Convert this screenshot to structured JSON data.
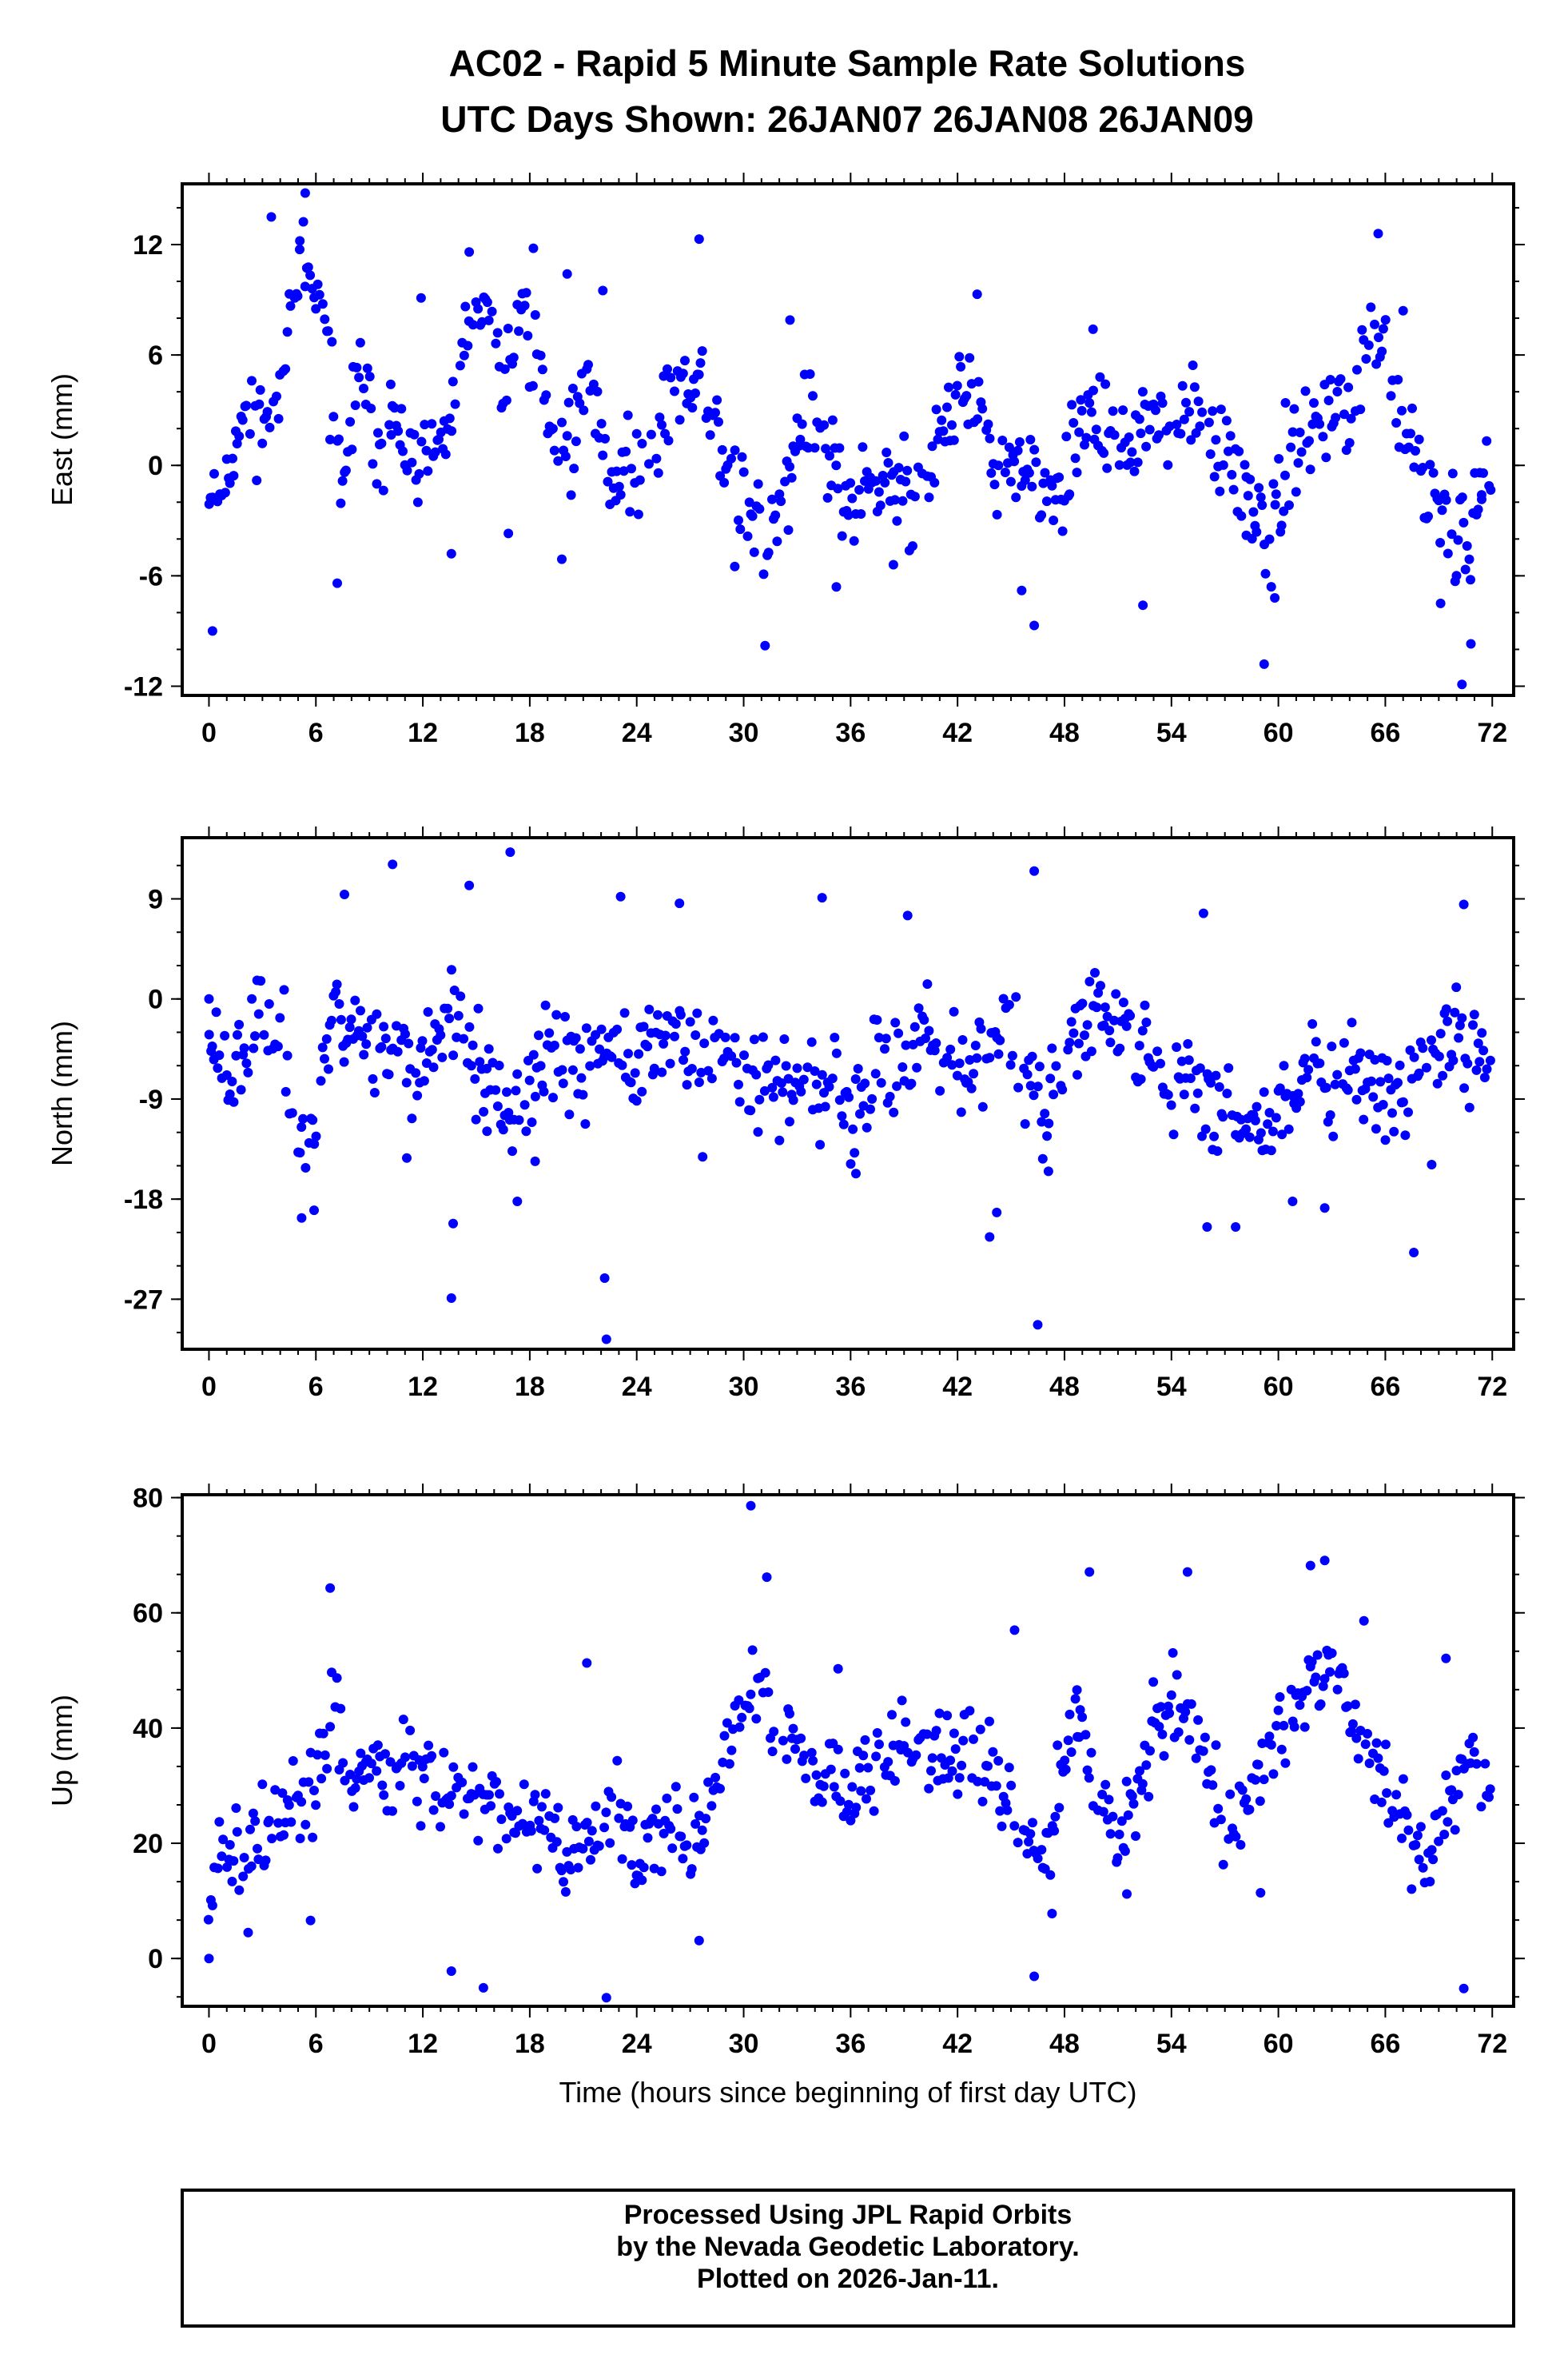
{
  "title": {
    "line1": "AC02 - Rapid 5 Minute Sample Rate Solutions",
    "line2": "UTC Days Shown:  26JAN07 26JAN08 26JAN09"
  },
  "colors": {
    "points": "#0000ff",
    "frame": "#000000"
  },
  "chart_data": [
    {
      "type": "scatter",
      "ylabel": "East (mm)",
      "xlabel": "",
      "xlim": [
        -1.5,
        73.2
      ],
      "ylim": [
        -12.5,
        15.3
      ],
      "xticks": [
        0,
        6,
        12,
        18,
        24,
        30,
        36,
        42,
        48,
        54,
        60,
        66,
        72
      ],
      "yticks": [
        12,
        6,
        0,
        -6,
        -12
      ],
      "ytick_labels": [
        "12",
        "6",
        "0",
        "-6",
        "-12"
      ],
      "grid": false,
      "outliers": [
        [
          0.2,
          -9.0
        ],
        [
          3.5,
          13.5
        ],
        [
          5.4,
          14.8
        ],
        [
          5.1,
          12.2
        ],
        [
          7.2,
          -6.4
        ],
        [
          10.2,
          4.4
        ],
        [
          11.9,
          9.1
        ],
        [
          13.6,
          -4.8
        ],
        [
          14.6,
          11.6
        ],
        [
          16.8,
          -3.7
        ],
        [
          18.2,
          11.8
        ],
        [
          19.8,
          -5.1
        ],
        [
          20.1,
          10.4
        ],
        [
          22.1,
          9.5
        ],
        [
          27.5,
          12.3
        ],
        [
          29.5,
          -5.5
        ],
        [
          31.2,
          -9.8
        ],
        [
          32.6,
          7.9
        ],
        [
          35.2,
          -6.6
        ],
        [
          38.4,
          -5.4
        ],
        [
          43.1,
          9.3
        ],
        [
          45.6,
          -6.8
        ],
        [
          46.3,
          -8.7
        ],
        [
          49.6,
          7.4
        ],
        [
          52.4,
          -7.6
        ],
        [
          58.2,
          -3.8
        ],
        [
          59.2,
          -10.8
        ],
        [
          59.8,
          -7.2
        ],
        [
          60.4,
          3.4
        ],
        [
          65.6,
          12.6
        ],
        [
          67.0,
          8.4
        ],
        [
          69.1,
          -7.5
        ],
        [
          70.3,
          -11.9
        ],
        [
          70.8,
          -9.7
        ],
        [
          71.4,
          -1.6
        ]
      ],
      "anchors": [
        [
          0,
          0
        ],
        [
          0.8,
          -1.5
        ],
        [
          1.5,
          2
        ],
        [
          2.5,
          3
        ],
        [
          3.5,
          2
        ],
        [
          4.5,
          8
        ],
        [
          5.5,
          10
        ],
        [
          6.5,
          7
        ],
        [
          7.5,
          -1
        ],
        [
          8.5,
          5
        ],
        [
          9.5,
          1
        ],
        [
          10.5,
          2
        ],
        [
          11.5,
          0
        ],
        [
          12.5,
          0
        ],
        [
          13.5,
          2
        ],
        [
          14.5,
          7
        ],
        [
          15.5,
          9
        ],
        [
          16.5,
          4
        ],
        [
          17.5,
          9
        ],
        [
          18.5,
          5
        ],
        [
          19.5,
          1
        ],
        [
          20.5,
          2
        ],
        [
          21.5,
          4
        ],
        [
          22.5,
          0
        ],
        [
          23.5,
          -1
        ],
        [
          24.5,
          1
        ],
        [
          25.5,
          3
        ],
        [
          26.5,
          4
        ],
        [
          27.5,
          5
        ],
        [
          28.5,
          2
        ],
        [
          29.5,
          -1
        ],
        [
          30.5,
          -3
        ],
        [
          31.5,
          -4
        ],
        [
          32.5,
          -1
        ],
        [
          33.5,
          3
        ],
        [
          34.5,
          1
        ],
        [
          35.5,
          -2
        ],
        [
          36.5,
          -2
        ],
        [
          37.5,
          0
        ],
        [
          38.5,
          -1
        ],
        [
          39.5,
          -2
        ],
        [
          40.5,
          0
        ],
        [
          41.5,
          3
        ],
        [
          42.5,
          4
        ],
        [
          43.5,
          1
        ],
        [
          44.5,
          -1
        ],
        [
          45.5,
          0
        ],
        [
          46.5,
          -2
        ],
        [
          47.5,
          -1
        ],
        [
          48.5,
          0
        ],
        [
          49.5,
          3
        ],
        [
          50.5,
          2
        ],
        [
          51.5,
          1
        ],
        [
          52.5,
          2
        ],
        [
          53.5,
          2
        ],
        [
          54.5,
          2
        ],
        [
          55.5,
          3
        ],
        [
          56.5,
          1
        ],
        [
          57.5,
          0
        ],
        [
          58.5,
          -2
        ],
        [
          59.5,
          -5
        ],
        [
          60.5,
          0
        ],
        [
          61.5,
          2
        ],
        [
          62.5,
          3
        ],
        [
          63.5,
          3
        ],
        [
          64.5,
          4
        ],
        [
          65.5,
          7
        ],
        [
          66.5,
          3
        ],
        [
          67.5,
          1
        ],
        [
          68.5,
          -1
        ],
        [
          69.5,
          -2
        ],
        [
          70.5,
          -4
        ],
        [
          71.5,
          -1
        ]
      ],
      "noise": 2.2,
      "seed": 11
    },
    {
      "type": "scatter",
      "ylabel": "North (mm)",
      "xlabel": "",
      "xlim": [
        -1.5,
        73.2
      ],
      "ylim": [
        -31.5,
        14.5
      ],
      "xticks": [
        0,
        6,
        12,
        18,
        24,
        30,
        36,
        42,
        48,
        54,
        60,
        66,
        72
      ],
      "yticks": [
        9,
        0,
        -9,
        -18,
        -27
      ],
      "ytick_labels": [
        "9",
        "0",
        "-9",
        "-18",
        "-27"
      ],
      "grid": false,
      "outliers": [
        [
          0,
          0
        ],
        [
          5.2,
          -19.7
        ],
        [
          5.9,
          -19.0
        ],
        [
          7.6,
          9.4
        ],
        [
          10.3,
          12.1
        ],
        [
          11.1,
          -14.3
        ],
        [
          13.6,
          -26.9
        ],
        [
          13.7,
          -20.2
        ],
        [
          14.6,
          10.2
        ],
        [
          15.6,
          -11.9
        ],
        [
          16.9,
          13.2
        ],
        [
          17.3,
          -18.2
        ],
        [
          18.3,
          -14.6
        ],
        [
          22.2,
          -25.1
        ],
        [
          22.3,
          -30.6
        ],
        [
          23.1,
          9.2
        ],
        [
          26.4,
          8.6
        ],
        [
          27.7,
          -14.2
        ],
        [
          34.4,
          9.1
        ],
        [
          36.3,
          -15.7
        ],
        [
          39.2,
          7.5
        ],
        [
          43.8,
          -21.4
        ],
        [
          44.2,
          -19.2
        ],
        [
          46.3,
          11.5
        ],
        [
          46.5,
          -29.3
        ],
        [
          47.1,
          -15.5
        ],
        [
          55.8,
          7.7
        ],
        [
          56.0,
          -20.5
        ],
        [
          57.6,
          -20.5
        ],
        [
          60.8,
          -18.2
        ],
        [
          62.6,
          -18.8
        ],
        [
          67.6,
          -22.8
        ],
        [
          68.6,
          -14.9
        ],
        [
          70.4,
          8.5
        ]
      ],
      "anchors": [
        [
          0,
          -3
        ],
        [
          1,
          -6
        ],
        [
          2,
          -5
        ],
        [
          3,
          -2
        ],
        [
          4,
          -4
        ],
        [
          5,
          -10
        ],
        [
          6,
          -12
        ],
        [
          7,
          0
        ],
        [
          8,
          -3
        ],
        [
          9,
          -2
        ],
        [
          10,
          -4
        ],
        [
          11,
          -5
        ],
        [
          12,
          -6
        ],
        [
          13,
          -4
        ],
        [
          14,
          -1
        ],
        [
          15,
          -6
        ],
        [
          16,
          -8
        ],
        [
          17,
          -10
        ],
        [
          18,
          -8
        ],
        [
          19,
          -5
        ],
        [
          20,
          -6
        ],
        [
          21,
          -7
        ],
        [
          22,
          -4
        ],
        [
          23,
          -6
        ],
        [
          24,
          -6
        ],
        [
          25,
          -4
        ],
        [
          26,
          -3
        ],
        [
          27,
          -4
        ],
        [
          28,
          -5
        ],
        [
          29,
          -6
        ],
        [
          30,
          -5
        ],
        [
          31,
          -7
        ],
        [
          32,
          -8
        ],
        [
          33,
          -7
        ],
        [
          34,
          -8
        ],
        [
          35,
          -9
        ],
        [
          36,
          -10
        ],
        [
          37,
          -7
        ],
        [
          38,
          -6
        ],
        [
          39,
          -5
        ],
        [
          40,
          -3
        ],
        [
          41,
          -4
        ],
        [
          42,
          -5
        ],
        [
          43,
          -6
        ],
        [
          44,
          -4
        ],
        [
          45,
          -3
        ],
        [
          46,
          -7
        ],
        [
          47,
          -9
        ],
        [
          48,
          -6
        ],
        [
          49,
          -2
        ],
        [
          50,
          -1
        ],
        [
          51,
          -2
        ],
        [
          52,
          -4
        ],
        [
          53,
          -6
        ],
        [
          54,
          -8
        ],
        [
          55,
          -7
        ],
        [
          56,
          -9
        ],
        [
          57,
          -8
        ],
        [
          58,
          -11
        ],
        [
          59,
          -12
        ],
        [
          60,
          -8
        ],
        [
          61,
          -9
        ],
        [
          62,
          -5
        ],
        [
          63,
          -8
        ],
        [
          64,
          -7
        ],
        [
          65,
          -6
        ],
        [
          66,
          -8
        ],
        [
          67,
          -9
        ],
        [
          68,
          -6
        ],
        [
          69,
          -4
        ],
        [
          70,
          -2
        ],
        [
          71,
          -5
        ],
        [
          72,
          -6
        ]
      ],
      "noise": 3.6,
      "seed": 23
    },
    {
      "type": "scatter",
      "ylabel": "Up (mm)",
      "xlabel": "Time (hours since beginning of first day UTC)",
      "xlim": [
        -1.5,
        73.2
      ],
      "ylim": [
        -8.3,
        80.5
      ],
      "xticks": [
        0,
        6,
        12,
        18,
        24,
        30,
        36,
        42,
        48,
        54,
        60,
        66,
        72
      ],
      "xtick_labels": [
        "0",
        "6",
        "12",
        "18",
        "24",
        "30",
        "36",
        "42",
        "48",
        "54",
        "60",
        "66",
        "72"
      ],
      "yticks": [
        80,
        60,
        40,
        20,
        0
      ],
      "ytick_labels": [
        "80",
        "60",
        "40",
        "20",
        "0"
      ],
      "grid": false,
      "outliers": [
        [
          0,
          0
        ],
        [
          2.2,
          4.5
        ],
        [
          5.7,
          6.6
        ],
        [
          6.8,
          64.3
        ],
        [
          13.6,
          -2.2
        ],
        [
          15.4,
          -5.1
        ],
        [
          21.2,
          51.3
        ],
        [
          22.3,
          -6.8
        ],
        [
          27.5,
          3.1
        ],
        [
          30.4,
          78.6
        ],
        [
          31.3,
          66.2
        ],
        [
          35.3,
          50.3
        ],
        [
          45.2,
          57.0
        ],
        [
          46.3,
          -3.1
        ],
        [
          47.3,
          7.8
        ],
        [
          48.7,
          46.6
        ],
        [
          49.4,
          67.1
        ],
        [
          51.5,
          11.2
        ],
        [
          54.0,
          45.7
        ],
        [
          54.9,
          67.1
        ],
        [
          59.0,
          11.4
        ],
        [
          61.8,
          68.2
        ],
        [
          62.6,
          69.1
        ],
        [
          64.8,
          58.6
        ],
        [
          69.4,
          52.1
        ],
        [
          70.4,
          -5.2
        ]
      ],
      "anchors": [
        [
          0,
          12
        ],
        [
          1,
          20
        ],
        [
          2,
          16
        ],
        [
          3,
          22
        ],
        [
          4,
          25
        ],
        [
          5,
          27
        ],
        [
          6,
          30
        ],
        [
          7,
          45
        ],
        [
          8,
          28
        ],
        [
          9,
          32
        ],
        [
          10,
          30
        ],
        [
          11,
          38
        ],
        [
          12,
          32
        ],
        [
          13,
          30
        ],
        [
          14,
          28
        ],
        [
          15,
          25
        ],
        [
          16,
          28
        ],
        [
          17,
          26
        ],
        [
          18,
          25
        ],
        [
          19,
          22
        ],
        [
          20,
          18
        ],
        [
          21,
          16
        ],
        [
          22,
          22
        ],
        [
          23,
          28
        ],
        [
          24,
          18
        ],
        [
          25,
          20
        ],
        [
          26,
          25
        ],
        [
          27,
          20
        ],
        [
          28,
          24
        ],
        [
          29,
          38
        ],
        [
          30,
          45
        ],
        [
          31,
          48
        ],
        [
          32,
          40
        ],
        [
          33,
          38
        ],
        [
          34,
          32
        ],
        [
          35,
          30
        ],
        [
          36,
          28
        ],
        [
          37,
          32
        ],
        [
          38,
          35
        ],
        [
          39,
          38
        ],
        [
          40,
          35
        ],
        [
          41,
          34
        ],
        [
          42,
          35
        ],
        [
          43,
          36
        ],
        [
          44,
          30
        ],
        [
          45,
          28
        ],
        [
          46,
          20
        ],
        [
          47,
          18
        ],
        [
          48,
          35
        ],
        [
          49,
          40
        ],
        [
          50,
          28
        ],
        [
          51,
          22
        ],
        [
          52,
          30
        ],
        [
          53,
          38
        ],
        [
          54,
          45
        ],
        [
          55,
          40
        ],
        [
          56,
          35
        ],
        [
          57,
          22
        ],
        [
          58,
          25
        ],
        [
          59,
          30
        ],
        [
          60,
          38
        ],
        [
          61,
          42
        ],
        [
          62,
          52
        ],
        [
          63,
          50
        ],
        [
          64,
          45
        ],
        [
          65,
          38
        ],
        [
          66,
          30
        ],
        [
          67,
          26
        ],
        [
          68,
          18
        ],
        [
          69,
          20
        ],
        [
          70,
          30
        ],
        [
          71,
          35
        ],
        [
          72,
          32
        ]
      ],
      "noise": 6.5,
      "seed": 37
    }
  ],
  "footer": {
    "line1": "Processed Using JPL Rapid Orbits",
    "line2": "by the Nevada Geodetic Laboratory.",
    "line3": "Plotted on 2026-Jan-11."
  }
}
